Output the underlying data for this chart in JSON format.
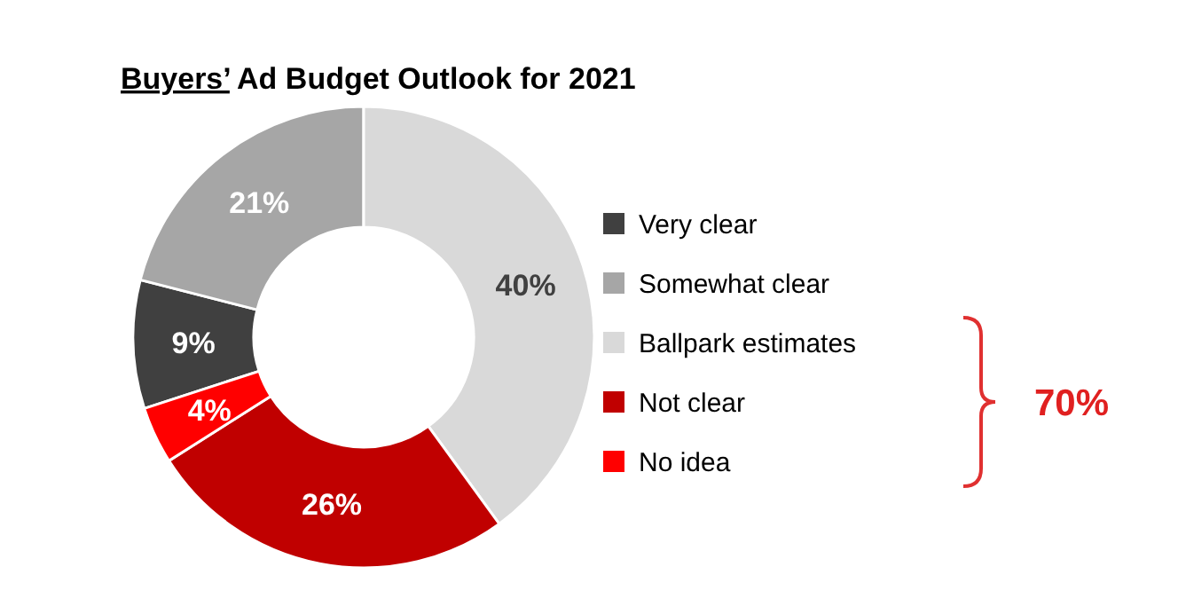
{
  "chart_data": {
    "type": "donut",
    "title": "Buyers’ Ad Budget Outlook for 2021",
    "categories": [
      "Very clear",
      "Somewhat clear",
      "Ballpark estimates",
      "Not clear",
      "No idea"
    ],
    "values": [
      9,
      21,
      40,
      26,
      4
    ],
    "colors": [
      "#404040",
      "#a6a6a6",
      "#d9d9d9",
      "#c00000",
      "#ff0000"
    ],
    "value_labels": [
      "9%",
      "21%",
      "40%",
      "26%",
      "4%"
    ],
    "legend": "right",
    "annotations": [
      "70%"
    ]
  }
}
